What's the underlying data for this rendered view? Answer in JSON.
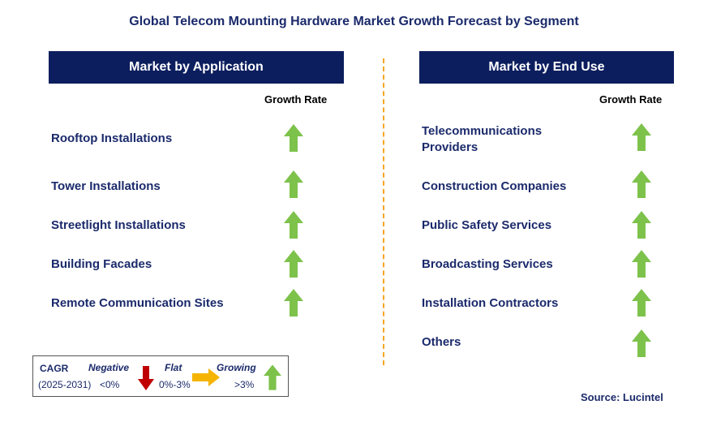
{
  "title": "Global Telecom Mounting Hardware Market Growth Forecast by Segment",
  "left_panel": {
    "header": "Market by Application",
    "growth_rate_label": "Growth Rate",
    "items": [
      {
        "label": "Rooftop Installations",
        "trend": "growing"
      },
      {
        "label": "Tower Installations",
        "trend": "growing"
      },
      {
        "label": "Streetlight Installations",
        "trend": "growing"
      },
      {
        "label": "Building Facades",
        "trend": "growing"
      },
      {
        "label": "Remote Communication Sites",
        "trend": "growing"
      }
    ]
  },
  "right_panel": {
    "header": "Market by End Use",
    "growth_rate_label": "Growth Rate",
    "items": [
      {
        "label_line1": "Telecommunications",
        "label_line2": "Providers",
        "trend": "growing"
      },
      {
        "label": "Construction Companies",
        "trend": "growing"
      },
      {
        "label": "Public Safety Services",
        "trend": "growing"
      },
      {
        "label": "Broadcasting Services",
        "trend": "growing"
      },
      {
        "label": "Installation Contractors",
        "trend": "growing"
      },
      {
        "label": "Others",
        "trend": "growing"
      }
    ]
  },
  "legend": {
    "cagr": "CAGR",
    "period": "(2025-2031)",
    "negative": {
      "label": "Negative",
      "range": "<0%",
      "icon": "red-down-arrow-icon"
    },
    "flat": {
      "label": "Flat",
      "range": "0%-3%",
      "icon": "orange-right-arrow-icon"
    },
    "growing": {
      "label": "Growing",
      "range": ">3%",
      "icon": "green-up-arrow-icon"
    }
  },
  "source": "Source: Lucintel",
  "colors": {
    "header_bg": "#0c1e5e",
    "text_navy": "#1b2a6b",
    "growing_green": "#7dc24b",
    "negative_red": "#c00000",
    "flat_orange": "#f5b400",
    "divider_orange": "#f5a623"
  }
}
